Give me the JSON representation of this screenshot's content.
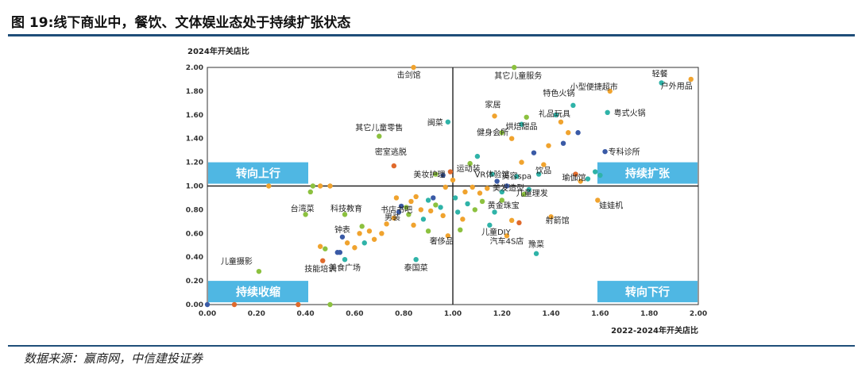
{
  "title": "图 19:线下商业中，餐饮、文体娱业态处于持续扩张状态",
  "source": "数据来源：赢商网，中信建投证券",
  "colors": {
    "teal": "#2fb3a8",
    "orange": "#f0a32e",
    "green": "#8cc13f",
    "navy": "#3a5aa6",
    "red": "#e06a2c",
    "quadrant": "#4fb7e3",
    "rule": "#1f4e79"
  },
  "chart_data": {
    "type": "scatter",
    "ylabel": "2024年开关店比",
    "xlabel": "2022-2024年开关店比",
    "xlim": [
      0,
      2.0
    ],
    "ylim": [
      0,
      2.0
    ],
    "x_ticks": [
      "0.00",
      "0.20",
      "0.40",
      "0.60",
      "0.80",
      "1.00",
      "1.20",
      "1.40",
      "1.60",
      "1.80",
      "2.00"
    ],
    "y_ticks": [
      "0.00",
      "0.20",
      "0.40",
      "0.60",
      "0.80",
      "1.00",
      "1.20",
      "1.40",
      "1.60",
      "1.80",
      "2.00"
    ],
    "reference_lines": {
      "x": 1.0,
      "y": 1.0
    },
    "quadrants": [
      {
        "label": "转向上行",
        "corner": "top-left"
      },
      {
        "label": "持续扩张",
        "corner": "top-right"
      },
      {
        "label": "持续收缩",
        "corner": "bottom-left"
      },
      {
        "label": "转向下行",
        "corner": "bottom-right"
      }
    ],
    "labeled_points": [
      {
        "label": "击剑馆",
        "x": 0.84,
        "y": 2.0,
        "color": "orange"
      },
      {
        "label": "其它儿童服务",
        "x": 1.25,
        "y": 2.0,
        "color": "green"
      },
      {
        "label": "小型便捷超市",
        "x": 1.64,
        "y": 1.8,
        "color": "orange"
      },
      {
        "label": "轻餐",
        "x": 1.85,
        "y": 1.87,
        "color": "teal"
      },
      {
        "label": "户外用品",
        "x": 1.97,
        "y": 1.9,
        "color": "orange"
      },
      {
        "label": "特色火锅",
        "x": 1.49,
        "y": 1.68,
        "color": "teal"
      },
      {
        "label": "粤式火锅",
        "x": 1.63,
        "y": 1.62,
        "color": "teal"
      },
      {
        "label": "家居",
        "x": 1.17,
        "y": 1.59,
        "color": "orange"
      },
      {
        "label": "礼品玩具",
        "x": 1.44,
        "y": 1.54,
        "color": "orange"
      },
      {
        "label": "烘焙甜品",
        "x": 1.28,
        "y": 1.52,
        "color": "teal"
      },
      {
        "label": "闽菜",
        "x": 0.98,
        "y": 1.54,
        "color": "teal"
      },
      {
        "label": "其它儿童零售",
        "x": 0.7,
        "y": 1.42,
        "color": "green"
      },
      {
        "label": "健身会所",
        "x": 1.24,
        "y": 1.4,
        "color": "orange"
      },
      {
        "label": "专科诊所",
        "x": 1.62,
        "y": 1.29,
        "color": "navy"
      },
      {
        "label": "密室逃脱",
        "x": 0.76,
        "y": 1.17,
        "color": "red"
      },
      {
        "label": "运动装",
        "x": 1.07,
        "y": 1.19,
        "color": "green"
      },
      {
        "label": "美妆护理",
        "x": 0.93,
        "y": 1.1,
        "color": "green"
      },
      {
        "label": "VR体验馆",
        "x": 1.16,
        "y": 1.1,
        "color": "teal"
      },
      {
        "label": "美容spa",
        "x": 1.26,
        "y": 1.08,
        "color": "teal"
      },
      {
        "label": "饮品",
        "x": 1.35,
        "y": 1.1,
        "color": "teal"
      },
      {
        "label": "瑜伽馆",
        "x": 1.5,
        "y": 1.1,
        "color": "red"
      },
      {
        "label": "美发造型",
        "x": 1.22,
        "y": 1.0,
        "color": "navy"
      },
      {
        "label": "儿童理发",
        "x": 1.31,
        "y": 0.97,
        "color": "teal"
      },
      {
        "label": "娃娃机",
        "x": 1.59,
        "y": 0.88,
        "color": "orange"
      },
      {
        "label": "黄金珠宝",
        "x": 1.2,
        "y": 0.88,
        "color": "green"
      },
      {
        "label": "书店书吧",
        "x": 0.79,
        "y": 0.83,
        "color": "navy"
      },
      {
        "label": "男装",
        "x": 0.78,
        "y": 0.78,
        "color": "navy"
      },
      {
        "label": "台湾菜",
        "x": 0.4,
        "y": 0.76,
        "color": "green"
      },
      {
        "label": "科技教育",
        "x": 0.56,
        "y": 0.76,
        "color": "green"
      },
      {
        "label": "射箭馆",
        "x": 1.4,
        "y": 0.74,
        "color": "orange"
      },
      {
        "label": "儿童DIY",
        "x": 1.15,
        "y": 0.67,
        "color": "teal"
      },
      {
        "label": "钟表",
        "x": 0.55,
        "y": 0.57,
        "color": "navy"
      },
      {
        "label": "汽车4S店",
        "x": 1.22,
        "y": 0.58,
        "color": "orange"
      },
      {
        "label": "奢侈品",
        "x": 0.98,
        "y": 0.58,
        "color": "orange"
      },
      {
        "label": "豫菜",
        "x": 1.34,
        "y": 0.43,
        "color": "teal"
      },
      {
        "label": "儿童摄影",
        "x": 0.21,
        "y": 0.28,
        "color": "green"
      },
      {
        "label": "技能培训",
        "x": 0.47,
        "y": 0.37,
        "color": "red"
      },
      {
        "label": "美食广场",
        "x": 0.56,
        "y": 0.38,
        "color": "teal"
      },
      {
        "label": "泰国菜",
        "x": 0.85,
        "y": 0.38,
        "color": "teal"
      }
    ],
    "unlabeled_points": [
      {
        "x": 0.0,
        "y": 0.0,
        "color": "navy"
      },
      {
        "x": 0.11,
        "y": 0.0,
        "color": "red"
      },
      {
        "x": 0.37,
        "y": 0.0,
        "color": "red"
      },
      {
        "x": 0.5,
        "y": 0.0,
        "color": "green"
      },
      {
        "x": 0.25,
        "y": 1.0,
        "color": "orange"
      },
      {
        "x": 0.42,
        "y": 0.95,
        "color": "green"
      },
      {
        "x": 0.43,
        "y": 1.0,
        "color": "green"
      },
      {
        "x": 0.46,
        "y": 1.0,
        "color": "orange"
      },
      {
        "x": 0.5,
        "y": 1.0,
        "color": "orange"
      },
      {
        "x": 0.46,
        "y": 0.49,
        "color": "orange"
      },
      {
        "x": 0.48,
        "y": 0.47,
        "color": "green"
      },
      {
        "x": 0.53,
        "y": 0.44,
        "color": "navy"
      },
      {
        "x": 0.54,
        "y": 0.44,
        "color": "navy"
      },
      {
        "x": 0.57,
        "y": 0.52,
        "color": "orange"
      },
      {
        "x": 0.6,
        "y": 0.48,
        "color": "orange"
      },
      {
        "x": 0.62,
        "y": 0.6,
        "color": "orange"
      },
      {
        "x": 0.63,
        "y": 0.66,
        "color": "green"
      },
      {
        "x": 0.64,
        "y": 0.52,
        "color": "teal"
      },
      {
        "x": 0.66,
        "y": 0.62,
        "color": "orange"
      },
      {
        "x": 0.68,
        "y": 0.55,
        "color": "orange"
      },
      {
        "x": 0.71,
        "y": 0.6,
        "color": "orange"
      },
      {
        "x": 0.73,
        "y": 0.68,
        "color": "orange"
      },
      {
        "x": 0.76,
        "y": 0.73,
        "color": "orange"
      },
      {
        "x": 0.77,
        "y": 0.9,
        "color": "orange"
      },
      {
        "x": 0.81,
        "y": 0.82,
        "color": "green"
      },
      {
        "x": 0.82,
        "y": 0.76,
        "color": "green"
      },
      {
        "x": 0.83,
        "y": 0.87,
        "color": "orange"
      },
      {
        "x": 0.84,
        "y": 0.67,
        "color": "orange"
      },
      {
        "x": 0.85,
        "y": 0.91,
        "color": "orange"
      },
      {
        "x": 0.87,
        "y": 0.8,
        "color": "orange"
      },
      {
        "x": 0.88,
        "y": 0.72,
        "color": "teal"
      },
      {
        "x": 0.9,
        "y": 0.88,
        "color": "teal"
      },
      {
        "x": 0.9,
        "y": 0.62,
        "color": "green"
      },
      {
        "x": 0.91,
        "y": 0.79,
        "color": "orange"
      },
      {
        "x": 0.92,
        "y": 0.9,
        "color": "navy"
      },
      {
        "x": 0.93,
        "y": 0.84,
        "color": "green"
      },
      {
        "x": 0.95,
        "y": 0.82,
        "color": "teal"
      },
      {
        "x": 0.96,
        "y": 0.75,
        "color": "orange"
      },
      {
        "x": 0.96,
        "y": 1.09,
        "color": "navy"
      },
      {
        "x": 0.97,
        "y": 0.99,
        "color": "orange"
      },
      {
        "x": 0.99,
        "y": 1.12,
        "color": "red"
      },
      {
        "x": 1.0,
        "y": 1.05,
        "color": "orange"
      },
      {
        "x": 1.01,
        "y": 0.9,
        "color": "teal"
      },
      {
        "x": 1.02,
        "y": 0.78,
        "color": "teal"
      },
      {
        "x": 1.03,
        "y": 0.63,
        "color": "green"
      },
      {
        "x": 1.04,
        "y": 0.72,
        "color": "orange"
      },
      {
        "x": 1.05,
        "y": 0.95,
        "color": "orange"
      },
      {
        "x": 1.06,
        "y": 0.85,
        "color": "teal"
      },
      {
        "x": 1.08,
        "y": 0.99,
        "color": "orange"
      },
      {
        "x": 1.09,
        "y": 0.8,
        "color": "green"
      },
      {
        "x": 1.11,
        "y": 0.94,
        "color": "orange"
      },
      {
        "x": 1.12,
        "y": 0.87,
        "color": "green"
      },
      {
        "x": 1.14,
        "y": 0.98,
        "color": "orange"
      },
      {
        "x": 1.17,
        "y": 0.78,
        "color": "teal"
      },
      {
        "x": 1.18,
        "y": 1.04,
        "color": "navy"
      },
      {
        "x": 1.2,
        "y": 0.95,
        "color": "teal"
      },
      {
        "x": 1.24,
        "y": 0.71,
        "color": "orange"
      },
      {
        "x": 1.27,
        "y": 0.69,
        "color": "red"
      },
      {
        "x": 1.29,
        "y": 0.93,
        "color": "green"
      },
      {
        "x": 1.33,
        "y": 1.28,
        "color": "navy"
      },
      {
        "x": 1.37,
        "y": 1.18,
        "color": "orange"
      },
      {
        "x": 1.39,
        "y": 1.34,
        "color": "orange"
      },
      {
        "x": 1.45,
        "y": 1.36,
        "color": "navy"
      },
      {
        "x": 1.47,
        "y": 1.45,
        "color": "orange"
      },
      {
        "x": 1.51,
        "y": 1.45,
        "color": "navy"
      },
      {
        "x": 1.52,
        "y": 1.04,
        "color": "orange"
      },
      {
        "x": 1.55,
        "y": 1.06,
        "color": "teal"
      },
      {
        "x": 1.58,
        "y": 1.12,
        "color": "teal"
      },
      {
        "x": 1.6,
        "y": 1.09,
        "color": "teal"
      },
      {
        "x": 1.3,
        "y": 1.58,
        "color": "green"
      },
      {
        "x": 1.42,
        "y": 1.6,
        "color": "teal"
      },
      {
        "x": 1.2,
        "y": 1.45,
        "color": "green"
      },
      {
        "x": 1.1,
        "y": 1.25,
        "color": "teal"
      },
      {
        "x": 1.28,
        "y": 1.2,
        "color": "orange"
      }
    ]
  }
}
